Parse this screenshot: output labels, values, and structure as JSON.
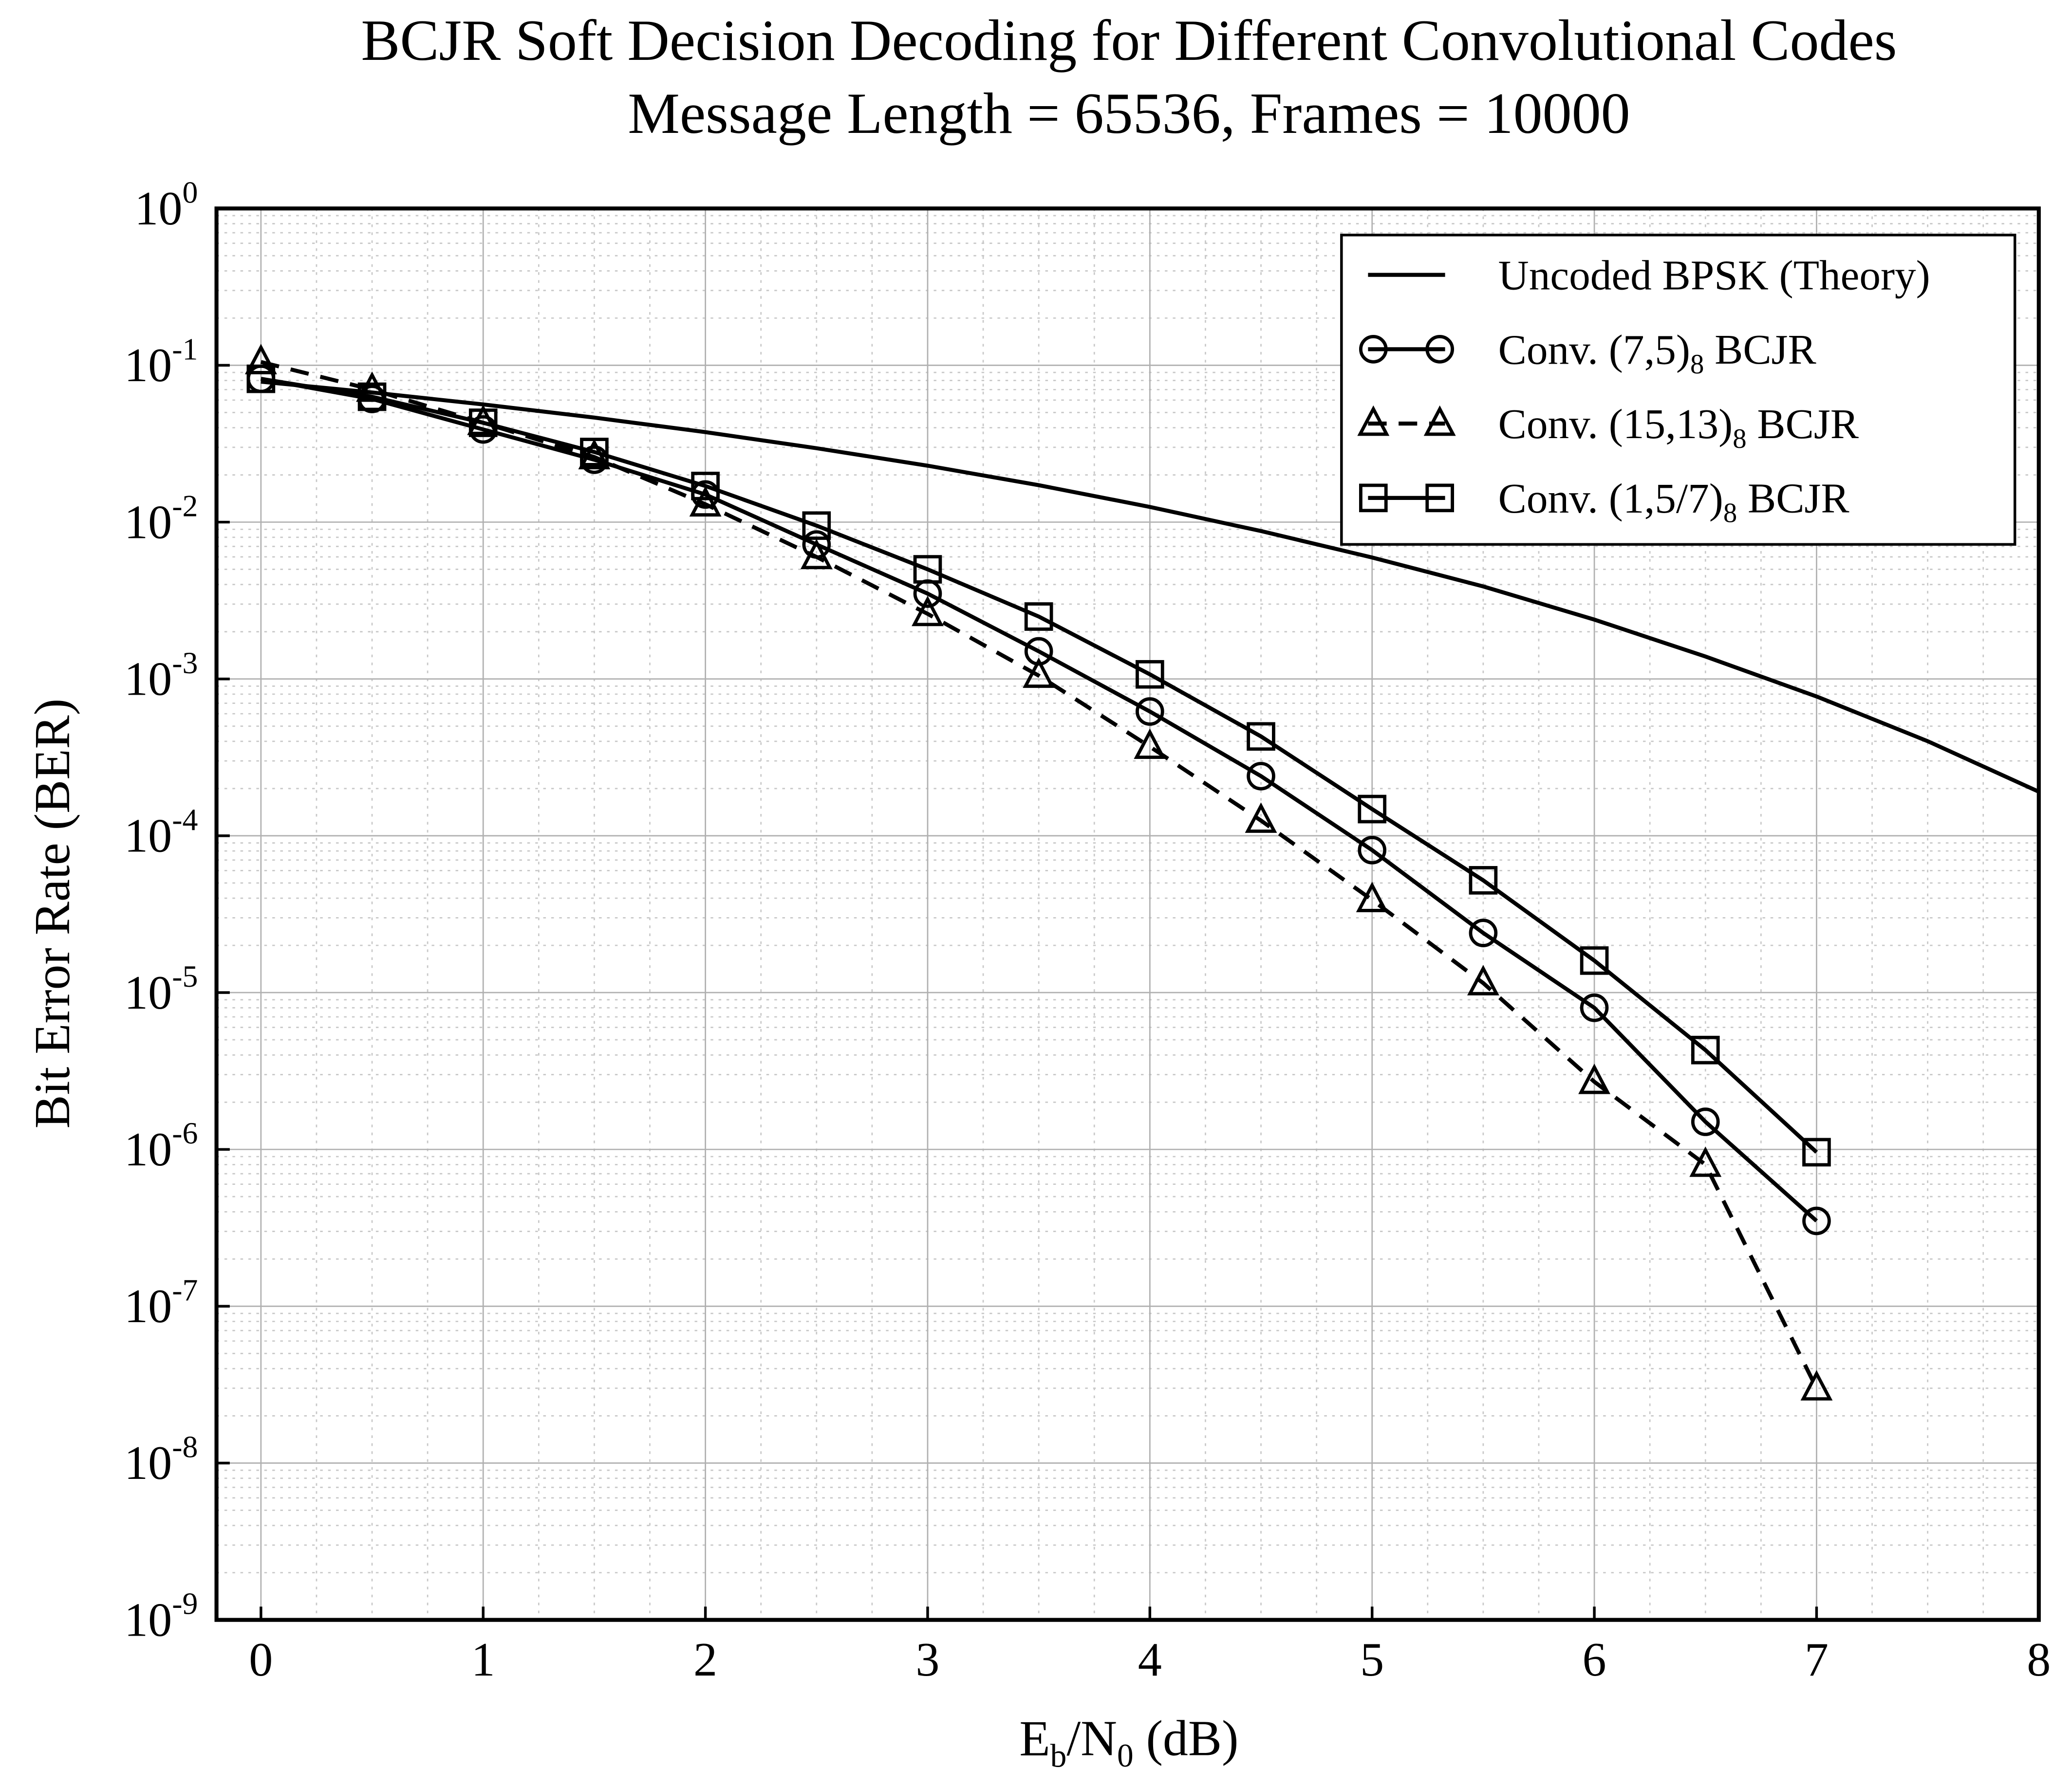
{
  "chart_data": {
    "type": "line",
    "title": "BCJR Soft Decision Decoding for Different Convolutional Codes",
    "subtitle": "Message Length = 65536, Frames = 10000",
    "xlabel": "E_b/N_0 (dB)",
    "ylabel": "Bit Error Rate (BER)",
    "log_y": true,
    "grid": true,
    "minor_grid": true,
    "legend": "upper right",
    "xlim": [
      -0.2,
      8
    ],
    "xticks": [
      0,
      1,
      2,
      3,
      4,
      5,
      6,
      7,
      8
    ],
    "ylim": [
      1e-09,
      1
    ],
    "yticks": [
      {
        "value": 1e-09,
        "label": "10^-9"
      },
      {
        "value": 1e-08,
        "label": "10^-8"
      },
      {
        "value": 1e-07,
        "label": "10^-7"
      },
      {
        "value": 1e-06,
        "label": "10^-6"
      },
      {
        "value": 1e-05,
        "label": "10^-5"
      },
      {
        "value": 0.0001,
        "label": "10^-4"
      },
      {
        "value": 0.001,
        "label": "10^-3"
      },
      {
        "value": 0.01,
        "label": "10^-2"
      },
      {
        "value": 0.1,
        "label": "10^-1"
      },
      {
        "value": 1,
        "label": "10^0"
      }
    ],
    "series": [
      {
        "name": "Uncoded BPSK (Theory)",
        "color": "#000000",
        "marker": "none",
        "dash": false,
        "x": [
          0,
          0.5,
          1,
          1.5,
          2,
          2.5,
          3,
          3.5,
          4,
          4.5,
          5,
          5.5,
          6,
          6.5,
          7,
          7.5,
          8
        ],
        "values": [
          0.0786,
          0.0671,
          0.0563,
          0.0464,
          0.0375,
          0.0296,
          0.0229,
          0.0172,
          0.0125,
          0.00877,
          0.00595,
          0.00389,
          0.00239,
          0.00139,
          0.000773,
          0.000401,
          0.000191
        ]
      },
      {
        "name": "Conv. (7,5)_8 BCJR",
        "color": "#000000",
        "marker": "circle",
        "dash": false,
        "x": [
          0,
          0.5,
          1,
          1.5,
          2,
          2.5,
          3,
          3.5,
          4,
          4.5,
          5,
          5.5,
          6,
          6.5,
          7
        ],
        "values": [
          0.082,
          0.061,
          0.039,
          0.025,
          0.015,
          0.0072,
          0.0035,
          0.0015,
          0.00062,
          0.00024,
          8.1e-05,
          2.4e-05,
          8e-06,
          1.5e-06,
          3.5e-07
        ]
      },
      {
        "name": "Conv. (15,13)_8 BCJR",
        "color": "#000000",
        "marker": "triangle",
        "dash": true,
        "x": [
          0,
          0.5,
          1,
          1.5,
          2,
          2.5,
          3,
          3.5,
          4,
          4.5,
          5,
          5.5,
          6,
          6.5,
          7
        ],
        "values": [
          0.105,
          0.07,
          0.043,
          0.026,
          0.013,
          0.006,
          0.0026,
          0.00105,
          0.00037,
          0.000125,
          3.9e-05,
          1.15e-05,
          2.7e-06,
          8e-07,
          3e-08
        ]
      },
      {
        "name": "Conv. (1,5/7)_8 BCJR",
        "color": "#000000",
        "marker": "square",
        "dash": false,
        "x": [
          0,
          0.5,
          1,
          1.5,
          2,
          2.5,
          3,
          3.5,
          4,
          4.5,
          5,
          5.5,
          6,
          6.5,
          7
        ],
        "values": [
          0.082,
          0.063,
          0.043,
          0.028,
          0.017,
          0.0095,
          0.005,
          0.0025,
          0.00107,
          0.00043,
          0.000148,
          5.2e-05,
          1.6e-05,
          4.3e-06,
          9.6e-07
        ]
      }
    ]
  }
}
